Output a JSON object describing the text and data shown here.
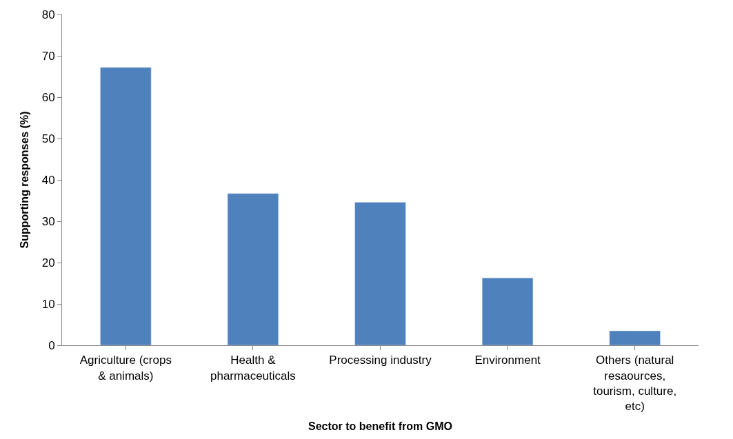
{
  "chart_data": {
    "type": "bar",
    "xlabel": "Sector to benefit from GMO",
    "ylabel": "Supporting responses (%)",
    "categories": [
      "Agriculture (crops & animals)",
      "Health & pharmaceuticals",
      "Processing industry",
      "Environment",
      "Others (natural resaources, tourism, culture, etc)"
    ],
    "values": [
      67.2,
      36.7,
      34.6,
      16.3,
      3.5
    ],
    "color": "#4f81bd",
    "ylim": [
      0,
      80
    ],
    "yticks": [
      0,
      10,
      20,
      30,
      40,
      50,
      60,
      70,
      80
    ],
    "grid": false
  }
}
